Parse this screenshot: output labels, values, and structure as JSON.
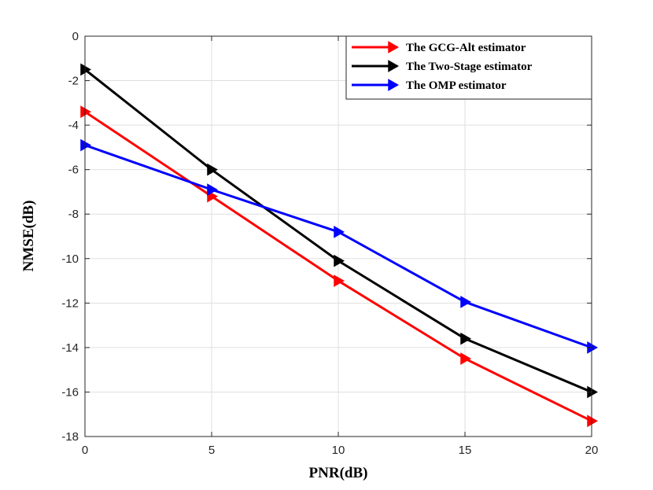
{
  "chart_data": {
    "type": "line",
    "title": "",
    "xlabel": "PNR(dB)",
    "ylabel": "NMSE(dB)",
    "xlim": [
      0,
      20
    ],
    "ylim": [
      -18,
      0
    ],
    "xticks": [
      0,
      5,
      10,
      15,
      20
    ],
    "yticks": [
      0,
      -2,
      -4,
      -6,
      -8,
      -10,
      -12,
      -14,
      -16,
      -18
    ],
    "xtick_labels": [
      "0",
      "5",
      "10",
      "15",
      "20"
    ],
    "ytick_labels": [
      "0",
      "-2",
      "-4",
      "-6",
      "-8",
      "-10",
      "-12",
      "-14",
      "-16",
      "-18"
    ],
    "grid": true,
    "legend_position": "top-right",
    "x": [
      0,
      5,
      10,
      15,
      20
    ],
    "series": [
      {
        "name": "The GCG-Alt estimator",
        "color": "#ff0000",
        "marker": "right-triangle",
        "values": [
          -3.4,
          -7.2,
          -11.0,
          -14.5,
          -17.3
        ]
      },
      {
        "name": "The Two-Stage estimator",
        "color": "#000000",
        "marker": "right-triangle",
        "values": [
          -1.5,
          -6.0,
          -10.1,
          -13.6,
          -16.0
        ]
      },
      {
        "name": "The OMP estimator",
        "color": "#0000ff",
        "marker": "right-triangle",
        "values": [
          -4.9,
          -6.9,
          -8.8,
          -11.95,
          -14.0
        ]
      }
    ]
  }
}
